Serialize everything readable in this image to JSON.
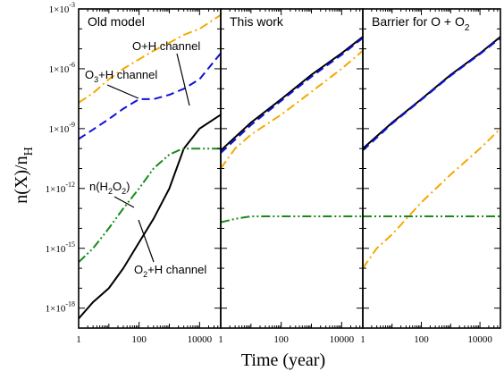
{
  "chart_data": {
    "type": "line",
    "xlabel": "Time (year)",
    "ylabel": "n(X)/n",
    "ylabel_sub": "H",
    "xscale": "log",
    "yscale": "log",
    "xlim": [
      1,
      50000
    ],
    "ylim": [
      1e-19,
      0.001
    ],
    "x_ticks": [
      1,
      100,
      10000
    ],
    "x_tick_labels": [
      "1",
      "100",
      "10000"
    ],
    "y_ticks": [
      1e-18,
      1e-15,
      1e-12,
      1e-09,
      1e-06,
      0.001
    ],
    "y_tick_labels": [
      {
        "base": "1×10",
        "exp": "-18"
      },
      {
        "base": "1×10",
        "exp": "-15"
      },
      {
        "base": "1×10",
        "exp": "-12"
      },
      {
        "base": "1×10",
        "exp": "-9"
      },
      {
        "base": "1×10",
        "exp": "-6"
      },
      {
        "base": "1×10",
        "exp": "-3"
      }
    ],
    "panels": [
      {
        "title": "Old model",
        "title_sub": "",
        "series": [
          {
            "color": "#000000",
            "dash": "solid",
            "x": [
              1,
              3,
              10,
              30,
              100,
              300,
              1000,
              3000,
              10000,
              50000
            ],
            "y": [
              3e-19,
              2e-18,
              1e-17,
              1e-16,
              2e-15,
              3e-14,
              1e-12,
              1e-10,
              1e-09,
              5e-09
            ]
          },
          {
            "color": "#1010dd",
            "dash": "dashed",
            "x": [
              1,
              3,
              10,
              30,
              100,
              300,
              1000,
              3000,
              10000,
              50000
            ],
            "y": [
              3e-10,
              9e-10,
              3e-09,
              1e-08,
              3e-08,
              3e-08,
              5e-08,
              1e-07,
              3e-07,
              6e-06
            ]
          },
          {
            "color": "#f5a800",
            "dash": "dashdot",
            "x": [
              1,
              3,
              10,
              30,
              100,
              300,
              1000,
              3000,
              10000,
              50000
            ],
            "y": [
              2e-08,
              6e-08,
              3e-07,
              1e-06,
              3e-06,
              8e-06,
              2e-05,
              5e-05,
              0.0001,
              0.0005
            ]
          },
          {
            "color": "#1a8a1a",
            "dash": "dashdotdot",
            "x": [
              1,
              3,
              10,
              30,
              100,
              300,
              1000,
              2000,
              3000,
              10000,
              50000
            ],
            "y": [
              2e-16,
              1e-15,
              1e-14,
              1e-13,
              1e-12,
              1e-11,
              5e-11,
              8e-11,
              1e-10,
              1e-10,
              1e-10
            ]
          }
        ],
        "annotations": [
          {
            "text": "O+H channel",
            "sub": ""
          },
          {
            "text": "O",
            "sub": "3",
            "rest": "+H channel"
          },
          {
            "text": "n(H",
            "sub": "2",
            "rest": "O",
            "sub2": "2",
            "tail": ")"
          },
          {
            "text": "O",
            "sub": "2",
            "rest": "+H channel"
          }
        ]
      },
      {
        "title": "This work",
        "title_sub": "",
        "series": [
          {
            "color": "#000000",
            "dash": "solid",
            "x": [
              1,
              10,
              100,
              1000,
              10000,
              50000
            ],
            "y": [
              8e-11,
              2e-09,
              3e-08,
              5e-07,
              6e-06,
              4e-05
            ]
          },
          {
            "color": "#1010dd",
            "dash": "dashed",
            "x": [
              1,
              10,
              100,
              1000,
              10000,
              50000
            ],
            "y": [
              6e-11,
              1.5e-09,
              2.5e-08,
              4e-07,
              5e-06,
              3.5e-05
            ]
          },
          {
            "color": "#f5a800",
            "dash": "dashdot",
            "x": [
              1,
              3,
              10,
              100,
              1000,
              10000,
              50000
            ],
            "y": [
              1e-11,
              1e-10,
              5e-10,
              5e-09,
              7e-08,
              1e-06,
              8e-06
            ]
          },
          {
            "color": "#1a8a1a",
            "dash": "dashdotdot",
            "x": [
              1,
              3,
              10,
              100,
              1000,
              10000,
              50000
            ],
            "y": [
              2e-14,
              3e-14,
              4e-14,
              4e-14,
              4e-14,
              4e-14,
              4e-14
            ]
          }
        ],
        "annotations": []
      },
      {
        "title": "Barrier for O + O",
        "title_sub": "2",
        "series": [
          {
            "color": "#000000",
            "dash": "solid",
            "x": [
              1,
              10,
              100,
              1000,
              10000,
              50000
            ],
            "y": [
              1e-10,
              2e-09,
              3e-08,
              5e-07,
              6e-06,
              4e-05
            ]
          },
          {
            "color": "#1010dd",
            "dash": "dashed",
            "x": [
              1,
              10,
              100,
              1000,
              10000,
              50000
            ],
            "y": [
              8e-11,
              1.8e-09,
              2.8e-08,
              4.5e-07,
              5.5e-06,
              3.5e-05
            ]
          },
          {
            "color": "#f5a800",
            "dash": "dashdot",
            "x": [
              1,
              3,
              10,
              100,
              1000,
              10000,
              50000
            ],
            "y": [
              1e-16,
              1e-15,
              5e-15,
              2e-13,
              5e-12,
              1e-10,
              1e-09
            ]
          },
          {
            "color": "#1a8a1a",
            "dash": "dashdotdot",
            "x": [
              1,
              10,
              100,
              1000,
              10000,
              50000
            ],
            "y": [
              4e-14,
              4e-14,
              4e-14,
              4e-14,
              4e-14,
              4e-14
            ]
          }
        ],
        "annotations": []
      }
    ]
  }
}
